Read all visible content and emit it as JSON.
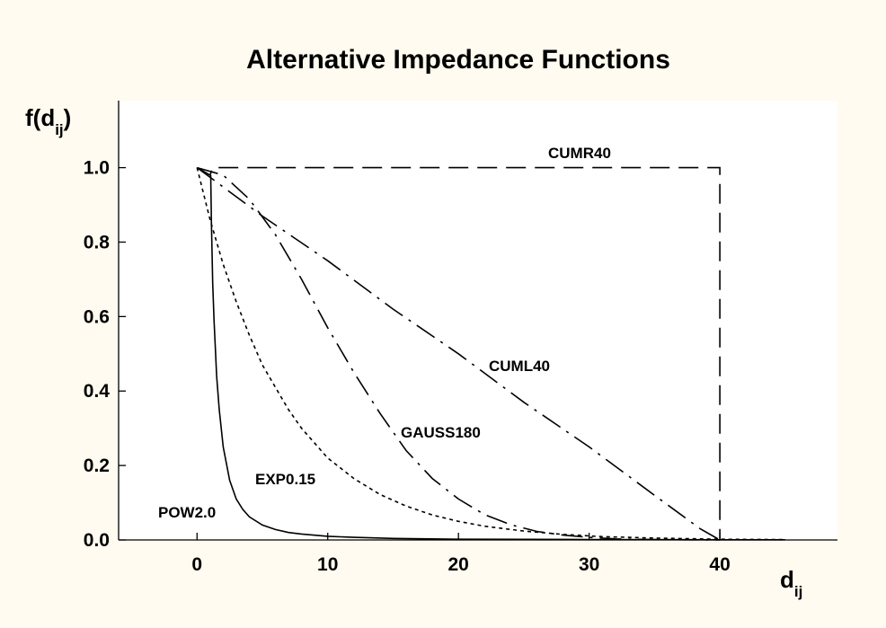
{
  "chart_data": {
    "type": "line",
    "title": "Alternative Impedance Functions",
    "ylabel": {
      "main": "f(d",
      "sub": "ij",
      "close": ")"
    },
    "xlabel": {
      "main": "d",
      "sub": "ij"
    },
    "xlim": [
      -6,
      49
    ],
    "ylim": [
      0,
      1.18
    ],
    "xticks": [
      0,
      10,
      20,
      30,
      40
    ],
    "xtick_labels": [
      "0",
      "10",
      "20",
      "30",
      "40"
    ],
    "yticks": [
      0.0,
      0.2,
      0.4,
      0.6,
      0.8,
      1.0
    ],
    "ytick_labels": [
      "0.0",
      "0.2",
      "0.4",
      "0.6",
      "0.8",
      "1.0"
    ],
    "grid": false,
    "colors": {
      "background": "#fffbf0",
      "plot": "#ffffff",
      "line": "#000000"
    },
    "series": [
      {
        "name": "CUMR40",
        "style": "longdash",
        "x": [
          0,
          1,
          1.2,
          40,
          40
        ],
        "y": [
          1.0,
          0.98,
          1.0,
          1.0,
          0.0
        ]
      },
      {
        "name": "CUML40",
        "style": "dashdot",
        "x": [
          0,
          5,
          10,
          15,
          20,
          25,
          30,
          35,
          38.5,
          40
        ],
        "y": [
          1.0,
          0.87,
          0.75,
          0.62,
          0.5,
          0.37,
          0.25,
          0.12,
          0.03,
          0.0
        ]
      },
      {
        "name": "GAUSS180",
        "style": "dashdot",
        "x": [
          0,
          2,
          4,
          6,
          8,
          10,
          12,
          14,
          16,
          18,
          20,
          22,
          24,
          26,
          28,
          30,
          32,
          35,
          40
        ],
        "y": [
          1.0,
          0.98,
          0.915,
          0.82,
          0.7,
          0.57,
          0.45,
          0.34,
          0.24,
          0.165,
          0.11,
          0.068,
          0.041,
          0.023,
          0.013,
          0.007,
          0.003,
          0.001,
          0.0
        ]
      },
      {
        "name": "EXP0.15",
        "style": "dotted",
        "x": [
          0,
          1,
          2,
          3,
          4,
          5,
          6,
          7,
          8,
          10,
          12,
          14,
          16,
          18,
          20,
          22,
          25,
          28,
          31,
          35,
          40,
          45
        ],
        "y": [
          1.0,
          0.86,
          0.74,
          0.64,
          0.55,
          0.47,
          0.41,
          0.35,
          0.3,
          0.22,
          0.165,
          0.122,
          0.091,
          0.067,
          0.05,
          0.037,
          0.024,
          0.015,
          0.009,
          0.005,
          0.002,
          0.001
        ]
      },
      {
        "name": "POW2.0",
        "style": "solid",
        "x": [
          1.05,
          1.1,
          1.2,
          1.3,
          1.5,
          1.7,
          2,
          2.5,
          3,
          3.5,
          4,
          5,
          6,
          7,
          8,
          10,
          12,
          15,
          20,
          25,
          30,
          40,
          45
        ],
        "y": [
          0.98,
          0.85,
          0.69,
          0.59,
          0.44,
          0.35,
          0.25,
          0.16,
          0.11,
          0.082,
          0.062,
          0.04,
          0.028,
          0.02,
          0.016,
          0.01,
          0.007,
          0.004,
          0.002,
          0.0016,
          0.0011,
          0.0006,
          0.0005
        ]
      }
    ]
  }
}
